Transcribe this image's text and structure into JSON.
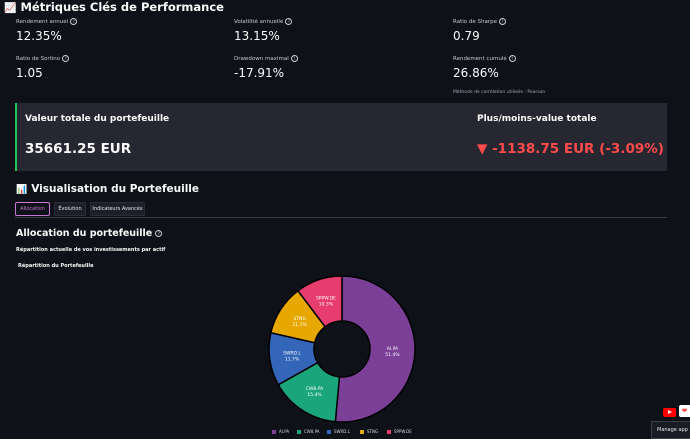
{
  "metrics_section": {
    "title": "Métriques Clés de Performance",
    "icon": "chart-increasing-icon",
    "items": [
      {
        "label": "Rendement annuel",
        "value": "12.35%"
      },
      {
        "label": "Volatilité annuelle",
        "value": "13.15%"
      },
      {
        "label": "Ratio de Sharpe",
        "value": "0.79"
      },
      {
        "label": "Ratio de Sortino",
        "value": "1.05"
      },
      {
        "label": "Drawdown maximal",
        "value": "-17.91%"
      },
      {
        "label": "Rendement cumulé",
        "value": "26.86%"
      }
    ],
    "correlation_note": "Méthode de corrélation utilisée : Pearson"
  },
  "portfolio_summary": {
    "total_value_label": "Valeur totale du portefeuille",
    "total_value": "35661.25 EUR",
    "pnl_label": "Plus/moins-value totale",
    "pnl_value": "▼ -1138.75 EUR (-3.09%)",
    "pnl_color": "#ff4b4b",
    "accent_color": "#21c354"
  },
  "visualisation": {
    "title": "Visualisation du Portefeuille",
    "icon": "bar-chart-icon",
    "tabs": [
      {
        "label": "Allocation",
        "active": true
      },
      {
        "label": "Évolution",
        "active": false
      },
      {
        "label": "Indicateurs Avancés",
        "active": false
      }
    ]
  },
  "allocation": {
    "title": "Allocation du portefeuille",
    "subtitle": "Répartition actuelle de vos investissements par actif"
  },
  "chart_data": {
    "type": "pie",
    "title": "Répartition du Portefeuille",
    "donut": true,
    "categories": [
      "AI.PA",
      "CW8.PA",
      "SWRD.L",
      "STNG",
      "SPPW.DE"
    ],
    "values": [
      51.4,
      15.4,
      11.7,
      11.1,
      10.3
    ],
    "colors": [
      "#7b3f98",
      "#1aa57a",
      "#3366b8",
      "#e6a700",
      "#e63d6e"
    ],
    "legend_position": "bottom"
  },
  "floating_controls": {
    "manage_label": "Manage app",
    "youtube_icon": "youtube-icon",
    "heart_icon": "heart-icon"
  }
}
